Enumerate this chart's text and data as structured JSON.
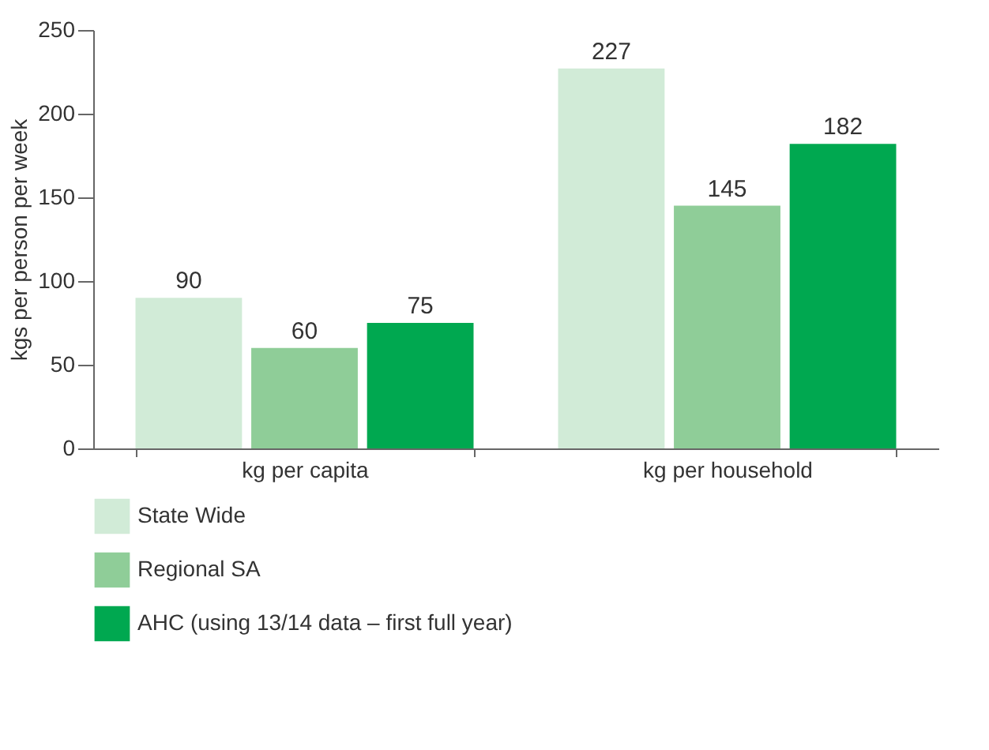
{
  "chart_data": {
    "type": "bar",
    "ylabel": "kgs per person per week",
    "categories": [
      "kg per capita",
      "kg per household"
    ],
    "series": [
      {
        "name": "State Wide",
        "color": "#d1ebd7",
        "values": [
          90,
          227
        ]
      },
      {
        "name": "Regional SA",
        "color": "#8fcd98",
        "values": [
          60,
          145
        ]
      },
      {
        "name": "AHC (using 13/14 data – first full year)",
        "color": "#00a850",
        "values": [
          75,
          182
        ]
      }
    ],
    "ylim": [
      0,
      250
    ],
    "yticks": [
      0,
      50,
      100,
      150,
      200,
      250
    ],
    "grid": false,
    "legend": "bottom",
    "data_labels": true
  }
}
